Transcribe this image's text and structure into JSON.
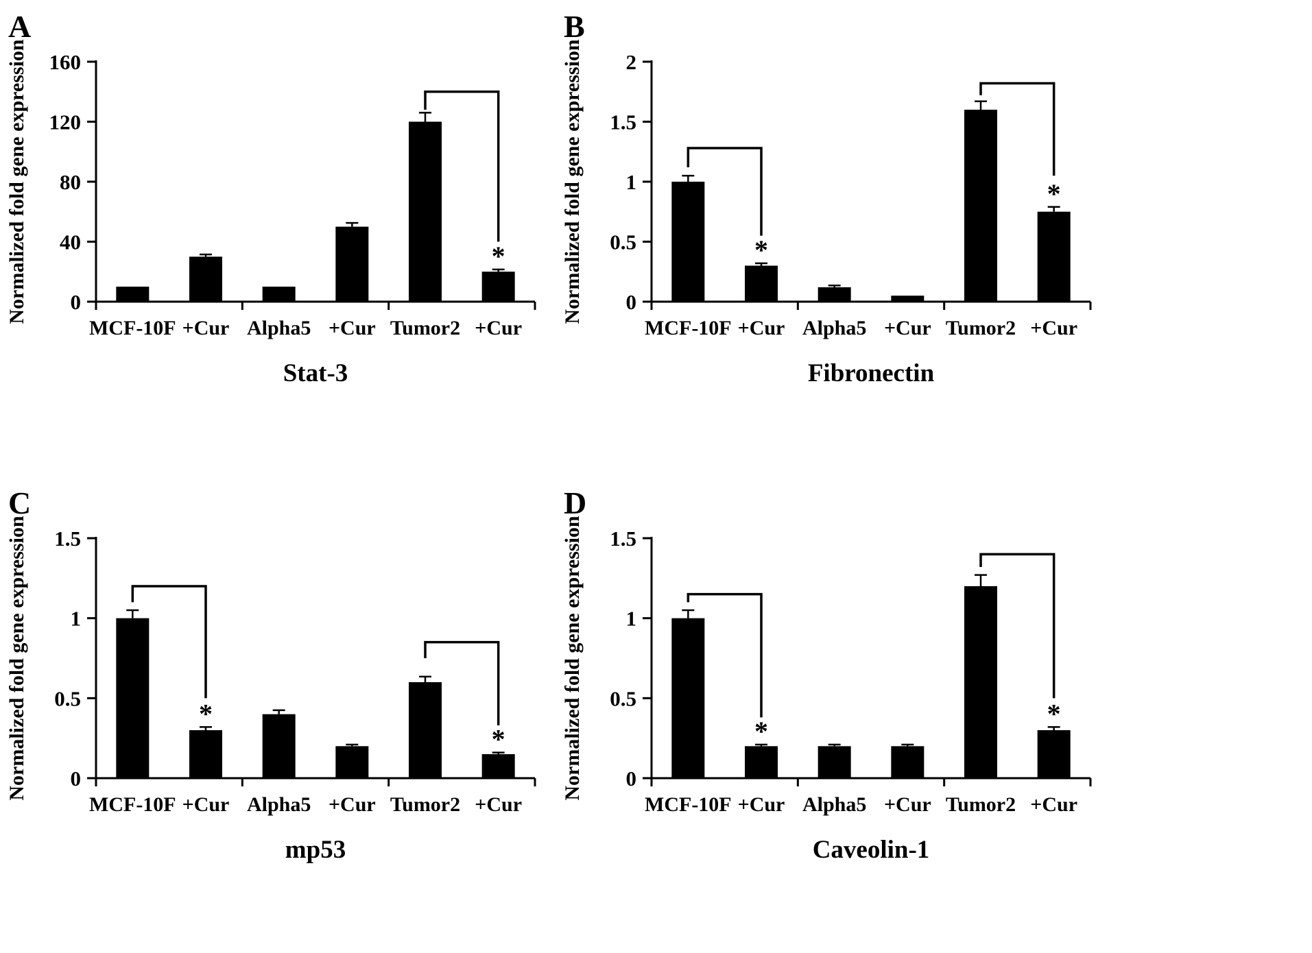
{
  "shared": {
    "ylabel": "Normalized fold gene expression",
    "categories": [
      "MCF-10F",
      "+Cur",
      "Alpha5",
      "+Cur",
      "Tumor2",
      "+Cur"
    ],
    "bar_color": "#000000",
    "axis_color": "#000000",
    "significance_marker": "*"
  },
  "chart_data": [
    {
      "type": "bar",
      "panel_label": "A",
      "title": "Stat-3",
      "ylabel": "Normalized fold gene expression",
      "xlabel": "",
      "categories": [
        "MCF-10F",
        "+Cur",
        "Alpha5",
        "+Cur",
        "Tumor2",
        "+Cur"
      ],
      "values": [
        10,
        30,
        10,
        50,
        120,
        20
      ],
      "errors": [
        0,
        1.5,
        0,
        2.5,
        6,
        1.5
      ],
      "ylim": [
        0,
        160
      ],
      "yticks": [
        0,
        40,
        80,
        120,
        160
      ],
      "ytick_labels": [
        "0",
        "40",
        "80",
        "120",
        "160"
      ],
      "grid": false,
      "legend": false,
      "asterisk_bars": [
        5
      ],
      "brackets": [
        {
          "from_bar": 4,
          "to_bar": 5,
          "top": 140,
          "left_end": 128,
          "right_end": 40
        }
      ]
    },
    {
      "type": "bar",
      "panel_label": "B",
      "title": "Fibronectin",
      "ylabel": "Normalized fold gene expression",
      "xlabel": "",
      "categories": [
        "MCF-10F",
        "+Cur",
        "Alpha5",
        "+Cur",
        "Tumor2",
        "+Cur"
      ],
      "values": [
        1.0,
        0.3,
        0.12,
        0.05,
        1.6,
        0.75
      ],
      "errors": [
        0.05,
        0.02,
        0.015,
        0,
        0.07,
        0.04
      ],
      "ylim": [
        0,
        2
      ],
      "yticks": [
        0,
        0.5,
        1,
        1.5,
        2
      ],
      "ytick_labels": [
        "0",
        "0.5",
        "1",
        "1.5",
        "2"
      ],
      "grid": false,
      "legend": false,
      "asterisk_bars": [
        1,
        5
      ],
      "brackets": [
        {
          "from_bar": 0,
          "to_bar": 1,
          "top": 1.28,
          "left_end": 1.12,
          "right_end": 0.55
        },
        {
          "from_bar": 4,
          "to_bar": 5,
          "top": 1.82,
          "left_end": 1.72,
          "right_end": 1.05
        }
      ]
    },
    {
      "type": "bar",
      "panel_label": "C",
      "title": "mp53",
      "ylabel": "Normalized fold gene expression",
      "xlabel": "",
      "categories": [
        "MCF-10F",
        "+Cur",
        "Alpha5",
        "+Cur",
        "Tumor2",
        "+Cur"
      ],
      "values": [
        1.0,
        0.3,
        0.4,
        0.2,
        0.6,
        0.15
      ],
      "errors": [
        0.05,
        0.02,
        0.025,
        0.01,
        0.035,
        0.01
      ],
      "ylim": [
        0,
        1.5
      ],
      "yticks": [
        0,
        0.5,
        1,
        1.5
      ],
      "ytick_labels": [
        "0",
        "0.5",
        "1",
        "1.5"
      ],
      "grid": false,
      "legend": false,
      "asterisk_bars": [
        1,
        5
      ],
      "brackets": [
        {
          "from_bar": 0,
          "to_bar": 1,
          "top": 1.2,
          "left_end": 1.1,
          "right_end": 0.5
        },
        {
          "from_bar": 4,
          "to_bar": 5,
          "top": 0.85,
          "left_end": 0.75,
          "right_end": 0.33
        }
      ]
    },
    {
      "type": "bar",
      "panel_label": "D",
      "title": "Caveolin-1",
      "ylabel": "Normalized fold gene expression",
      "xlabel": "",
      "categories": [
        "MCF-10F",
        "+Cur",
        "Alpha5",
        "+Cur",
        "Tumor2",
        "+Cur"
      ],
      "values": [
        1.0,
        0.2,
        0.2,
        0.2,
        1.2,
        0.3
      ],
      "errors": [
        0.05,
        0.01,
        0.01,
        0.01,
        0.07,
        0.02
      ],
      "ylim": [
        0,
        1.5
      ],
      "yticks": [
        0,
        0.5,
        1,
        1.5
      ],
      "ytick_labels": [
        "0",
        "0.5",
        "1",
        "1.5"
      ],
      "grid": false,
      "legend": false,
      "asterisk_bars": [
        1,
        5
      ],
      "brackets": [
        {
          "from_bar": 0,
          "to_bar": 1,
          "top": 1.15,
          "left_end": 1.1,
          "right_end": 0.38
        },
        {
          "from_bar": 4,
          "to_bar": 5,
          "top": 1.4,
          "left_end": 1.32,
          "right_end": 0.5
        }
      ]
    }
  ]
}
